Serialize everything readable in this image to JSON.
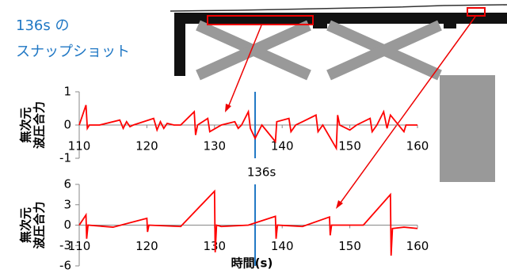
{
  "caption": [
    "136s の",
    "スナップショット"
  ],
  "chart_data": [
    {
      "type": "line",
      "ylabel": [
        "無次元",
        "波圧合力"
      ],
      "xlim": [
        110,
        160
      ],
      "xticks": [
        110,
        120,
        130,
        140,
        150,
        160
      ],
      "ylim": [
        -1,
        1
      ],
      "yticks": [
        1,
        0,
        -1
      ],
      "vline": 136,
      "series": [
        {
          "color": "#ff0000",
          "x": [
            110,
            111,
            111.2,
            111.5,
            113,
            116,
            116.5,
            117,
            117.5,
            118,
            121,
            121.5,
            122,
            122.5,
            123,
            124,
            125,
            127,
            127.2,
            127.5,
            129,
            129.3,
            131,
            133,
            133.5,
            134,
            135,
            135.3,
            136,
            137,
            139,
            139.2,
            141,
            141.3,
            142,
            145,
            145.3,
            146,
            148,
            148.2,
            148.5,
            150,
            151,
            153,
            153.3,
            154,
            155,
            155.5,
            156,
            158,
            158.3,
            160
          ],
          "values": [
            0,
            0.6,
            -0.1,
            0,
            0,
            0.15,
            -0.1,
            0.1,
            -0.05,
            0,
            0.2,
            -0.15,
            0.1,
            -0.1,
            0.05,
            0,
            0,
            0.4,
            -0.3,
            0,
            0.2,
            -0.2,
            0,
            0.1,
            -0.1,
            0,
            0.4,
            -0.1,
            -0.4,
            0,
            -0.5,
            0.1,
            0.2,
            -0.2,
            0,
            0.3,
            -0.2,
            0,
            -0.7,
            0.3,
            0,
            -0.15,
            0,
            0.2,
            -0.2,
            0,
            0.4,
            -0.1,
            0.3,
            -0.2,
            0,
            0
          ]
        }
      ]
    },
    {
      "type": "line",
      "ylabel": [
        "無次元",
        "波圧合力"
      ],
      "xlabel": "時間(s)",
      "xlim": [
        110,
        160
      ],
      "xticks": [
        110,
        120,
        130,
        140,
        150,
        160
      ],
      "ylim": [
        -6,
        6
      ],
      "yticks": [
        6,
        3,
        0,
        -3,
        -6
      ],
      "vline": 136,
      "vline_label": "136s",
      "series": [
        {
          "color": "#ff0000",
          "x": [
            110,
            111,
            111.1,
            111.3,
            115,
            120,
            120.1,
            120.3,
            125,
            130,
            130.1,
            130.3,
            131,
            135,
            139,
            139.1,
            139.3,
            143,
            147,
            147.1,
            147.3,
            152,
            156,
            156.1,
            156.3,
            158,
            160
          ],
          "values": [
            0,
            1.5,
            -2,
            0,
            -0.3,
            1,
            -1,
            0,
            -0.2,
            5,
            -4,
            0,
            -0.2,
            0,
            1.3,
            -2,
            0,
            -0.2,
            1.2,
            -1.5,
            0,
            0,
            4.5,
            -4.5,
            -0.5,
            -0.3,
            -0.5
          ]
        }
      ]
    }
  ]
}
